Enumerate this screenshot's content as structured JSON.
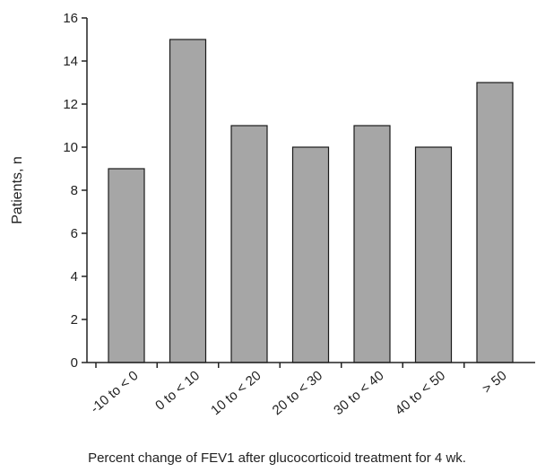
{
  "chart_data": {
    "type": "bar",
    "categories": [
      "-10 to < 0",
      "0 to < 10",
      "10 to < 20",
      "20 to < 30",
      "30 to < 40",
      "40 to < 50",
      "> 50"
    ],
    "values": [
      9,
      15,
      11,
      10,
      11,
      10,
      13
    ],
    "title": "",
    "xlabel": "Percent change of FEV1 after glucocorticoid treatment for 4 wk.",
    "ylabel": "Patients, n",
    "ylim": [
      0,
      16
    ],
    "yticks": [
      0,
      2,
      4,
      6,
      8,
      10,
      12,
      14,
      16
    ],
    "grid": false,
    "legend": "none",
    "bar_color": "#a6a6a6",
    "bar_edge_color": "#1a1a1a"
  }
}
